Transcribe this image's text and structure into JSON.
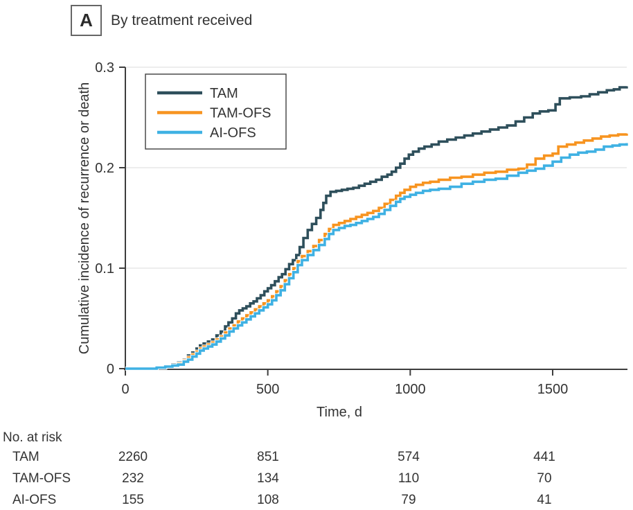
{
  "panel": {
    "label": "A",
    "title": "By treatment received"
  },
  "colors": {
    "tam": "#2e4f5b",
    "tam_ofs": "#f79420",
    "ai_ofs": "#3fb1e3",
    "axis": "#3d3d3d",
    "grid": "#e7e7e7",
    "text": "#333333",
    "legend_border": "#4a4a4a"
  },
  "chart_data": {
    "type": "line",
    "subtype": "step-cumulative-incidence",
    "title": "By treatment received",
    "xlabel": "Time, d",
    "ylabel": "Cumulative incidence of recurrence or death",
    "xlim": [
      0,
      1760
    ],
    "ylim": [
      0,
      0.3
    ],
    "x_ticks": [
      0,
      500,
      1000,
      1500
    ],
    "x_tick_labels": [
      "0",
      "500",
      "1000",
      "1500"
    ],
    "y_ticks": [
      0,
      0.1,
      0.2,
      0.3
    ],
    "y_tick_labels": [
      "0",
      "0.1",
      "0.2",
      "0.3"
    ],
    "grid": "horizontal",
    "legend_position": "top-left",
    "series": [
      {
        "name": "TAM",
        "color": "#2e4f5b",
        "points": [
          [
            0,
            0
          ],
          [
            110,
            0.001
          ],
          [
            140,
            0.002
          ],
          [
            165,
            0.004
          ],
          [
            185,
            0.006
          ],
          [
            205,
            0.009
          ],
          [
            220,
            0.013
          ],
          [
            235,
            0.016
          ],
          [
            250,
            0.02
          ],
          [
            262,
            0.023
          ],
          [
            275,
            0.025
          ],
          [
            290,
            0.027
          ],
          [
            305,
            0.029
          ],
          [
            320,
            0.033
          ],
          [
            335,
            0.037
          ],
          [
            350,
            0.042
          ],
          [
            362,
            0.046
          ],
          [
            375,
            0.05
          ],
          [
            388,
            0.055
          ],
          [
            400,
            0.058
          ],
          [
            412,
            0.06
          ],
          [
            425,
            0.062
          ],
          [
            438,
            0.065
          ],
          [
            450,
            0.067
          ],
          [
            462,
            0.07
          ],
          [
            475,
            0.073
          ],
          [
            488,
            0.077
          ],
          [
            500,
            0.08
          ],
          [
            512,
            0.083
          ],
          [
            525,
            0.087
          ],
          [
            538,
            0.091
          ],
          [
            550,
            0.094
          ],
          [
            562,
            0.099
          ],
          [
            575,
            0.104
          ],
          [
            588,
            0.108
          ],
          [
            600,
            0.113
          ],
          [
            612,
            0.121
          ],
          [
            625,
            0.13
          ],
          [
            640,
            0.138
          ],
          [
            655,
            0.144
          ],
          [
            670,
            0.15
          ],
          [
            685,
            0.158
          ],
          [
            695,
            0.165
          ],
          [
            705,
            0.172
          ],
          [
            720,
            0.176
          ],
          [
            740,
            0.177
          ],
          [
            760,
            0.178
          ],
          [
            780,
            0.179
          ],
          [
            800,
            0.18
          ],
          [
            820,
            0.182
          ],
          [
            840,
            0.184
          ],
          [
            860,
            0.186
          ],
          [
            880,
            0.188
          ],
          [
            900,
            0.191
          ],
          [
            920,
            0.193
          ],
          [
            935,
            0.196
          ],
          [
            950,
            0.2
          ],
          [
            965,
            0.204
          ],
          [
            980,
            0.209
          ],
          [
            995,
            0.213
          ],
          [
            1010,
            0.216
          ],
          [
            1030,
            0.219
          ],
          [
            1050,
            0.221
          ],
          [
            1075,
            0.223
          ],
          [
            1100,
            0.226
          ],
          [
            1130,
            0.228
          ],
          [
            1160,
            0.23
          ],
          [
            1190,
            0.232
          ],
          [
            1220,
            0.234
          ],
          [
            1250,
            0.236
          ],
          [
            1280,
            0.238
          ],
          [
            1310,
            0.24
          ],
          [
            1340,
            0.242
          ],
          [
            1370,
            0.246
          ],
          [
            1400,
            0.25
          ],
          [
            1430,
            0.254
          ],
          [
            1455,
            0.256
          ],
          [
            1485,
            0.257
          ],
          [
            1510,
            0.263
          ],
          [
            1525,
            0.269
          ],
          [
            1560,
            0.27
          ],
          [
            1600,
            0.271
          ],
          [
            1630,
            0.273
          ],
          [
            1660,
            0.275
          ],
          [
            1690,
            0.277
          ],
          [
            1715,
            0.278
          ],
          [
            1735,
            0.28
          ],
          [
            1760,
            0.281
          ]
        ]
      },
      {
        "name": "TAM-OFS",
        "color": "#f79420",
        "points": [
          [
            0,
            0
          ],
          [
            110,
            0.001
          ],
          [
            140,
            0.002
          ],
          [
            165,
            0.003
          ],
          [
            185,
            0.005
          ],
          [
            205,
            0.008
          ],
          [
            220,
            0.011
          ],
          [
            235,
            0.014
          ],
          [
            250,
            0.017
          ],
          [
            262,
            0.02
          ],
          [
            275,
            0.022
          ],
          [
            290,
            0.024
          ],
          [
            305,
            0.026
          ],
          [
            320,
            0.029
          ],
          [
            335,
            0.032
          ],
          [
            350,
            0.036
          ],
          [
            365,
            0.04
          ],
          [
            380,
            0.043
          ],
          [
            395,
            0.047
          ],
          [
            410,
            0.05
          ],
          [
            425,
            0.053
          ],
          [
            440,
            0.056
          ],
          [
            455,
            0.059
          ],
          [
            470,
            0.062
          ],
          [
            485,
            0.065
          ],
          [
            500,
            0.068
          ],
          [
            515,
            0.072
          ],
          [
            530,
            0.077
          ],
          [
            545,
            0.082
          ],
          [
            560,
            0.088
          ],
          [
            575,
            0.094
          ],
          [
            590,
            0.1
          ],
          [
            605,
            0.107
          ],
          [
            620,
            0.112
          ],
          [
            640,
            0.117
          ],
          [
            660,
            0.122
          ],
          [
            680,
            0.128
          ],
          [
            700,
            0.134
          ],
          [
            715,
            0.139
          ],
          [
            730,
            0.143
          ],
          [
            750,
            0.145
          ],
          [
            770,
            0.147
          ],
          [
            790,
            0.149
          ],
          [
            810,
            0.151
          ],
          [
            830,
            0.153
          ],
          [
            850,
            0.155
          ],
          [
            870,
            0.157
          ],
          [
            890,
            0.16
          ],
          [
            910,
            0.164
          ],
          [
            930,
            0.168
          ],
          [
            950,
            0.172
          ],
          [
            965,
            0.175
          ],
          [
            980,
            0.178
          ],
          [
            1000,
            0.181
          ],
          [
            1020,
            0.183
          ],
          [
            1045,
            0.185
          ],
          [
            1070,
            0.186
          ],
          [
            1100,
            0.188
          ],
          [
            1140,
            0.19
          ],
          [
            1180,
            0.191
          ],
          [
            1220,
            0.193
          ],
          [
            1260,
            0.195
          ],
          [
            1300,
            0.196
          ],
          [
            1340,
            0.198
          ],
          [
            1380,
            0.199
          ],
          [
            1410,
            0.203
          ],
          [
            1440,
            0.209
          ],
          [
            1470,
            0.212
          ],
          [
            1500,
            0.214
          ],
          [
            1520,
            0.221
          ],
          [
            1550,
            0.223
          ],
          [
            1580,
            0.225
          ],
          [
            1610,
            0.227
          ],
          [
            1640,
            0.229
          ],
          [
            1670,
            0.231
          ],
          [
            1700,
            0.232
          ],
          [
            1730,
            0.233
          ],
          [
            1760,
            0.234
          ]
        ]
      },
      {
        "name": "AI-OFS",
        "color": "#3fb1e3",
        "points": [
          [
            0,
            0
          ],
          [
            110,
            0.001
          ],
          [
            140,
            0.002
          ],
          [
            165,
            0.003
          ],
          [
            185,
            0.004
          ],
          [
            205,
            0.007
          ],
          [
            220,
            0.009
          ],
          [
            235,
            0.012
          ],
          [
            250,
            0.015
          ],
          [
            262,
            0.018
          ],
          [
            275,
            0.02
          ],
          [
            290,
            0.022
          ],
          [
            305,
            0.024
          ],
          [
            320,
            0.027
          ],
          [
            335,
            0.03
          ],
          [
            350,
            0.033
          ],
          [
            365,
            0.037
          ],
          [
            380,
            0.04
          ],
          [
            395,
            0.043
          ],
          [
            410,
            0.046
          ],
          [
            425,
            0.049
          ],
          [
            440,
            0.052
          ],
          [
            455,
            0.055
          ],
          [
            470,
            0.058
          ],
          [
            485,
            0.061
          ],
          [
            500,
            0.064
          ],
          [
            515,
            0.068
          ],
          [
            530,
            0.073
          ],
          [
            545,
            0.078
          ],
          [
            560,
            0.084
          ],
          [
            575,
            0.09
          ],
          [
            590,
            0.096
          ],
          [
            605,
            0.103
          ],
          [
            620,
            0.108
          ],
          [
            640,
            0.113
          ],
          [
            660,
            0.118
          ],
          [
            680,
            0.123
          ],
          [
            700,
            0.129
          ],
          [
            715,
            0.134
          ],
          [
            730,
            0.138
          ],
          [
            750,
            0.14
          ],
          [
            770,
            0.142
          ],
          [
            790,
            0.143
          ],
          [
            810,
            0.145
          ],
          [
            830,
            0.147
          ],
          [
            850,
            0.149
          ],
          [
            870,
            0.151
          ],
          [
            890,
            0.154
          ],
          [
            910,
            0.158
          ],
          [
            930,
            0.162
          ],
          [
            950,
            0.166
          ],
          [
            965,
            0.169
          ],
          [
            980,
            0.171
          ],
          [
            1000,
            0.173
          ],
          [
            1020,
            0.175
          ],
          [
            1045,
            0.177
          ],
          [
            1070,
            0.178
          ],
          [
            1100,
            0.179
          ],
          [
            1140,
            0.181
          ],
          [
            1180,
            0.184
          ],
          [
            1220,
            0.186
          ],
          [
            1260,
            0.188
          ],
          [
            1300,
            0.189
          ],
          [
            1340,
            0.192
          ],
          [
            1380,
            0.195
          ],
          [
            1410,
            0.197
          ],
          [
            1440,
            0.199
          ],
          [
            1470,
            0.202
          ],
          [
            1500,
            0.206
          ],
          [
            1530,
            0.21
          ],
          [
            1560,
            0.213
          ],
          [
            1590,
            0.215
          ],
          [
            1620,
            0.216
          ],
          [
            1650,
            0.218
          ],
          [
            1680,
            0.221
          ],
          [
            1710,
            0.222
          ],
          [
            1735,
            0.223
          ],
          [
            1760,
            0.2245
          ]
        ]
      }
    ]
  },
  "risk_table": {
    "title": "No. at risk",
    "time_points": [
      0,
      500,
      1000,
      1500
    ],
    "rows": [
      {
        "label": "TAM",
        "values": [
          "2260",
          "851",
          "574",
          "441"
        ]
      },
      {
        "label": "TAM-OFS",
        "values": [
          "232",
          "134",
          "110",
          "70"
        ]
      },
      {
        "label": "AI-OFS",
        "values": [
          "155",
          "108",
          "79",
          "41"
        ]
      }
    ]
  }
}
